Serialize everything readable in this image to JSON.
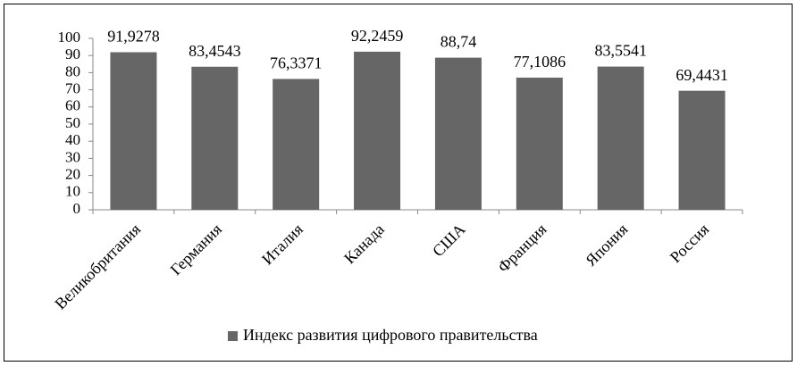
{
  "chart_data": {
    "type": "bar",
    "categories": [
      "Великобритания",
      "Германия",
      "Италия",
      "Канада",
      "США",
      "Франция",
      "Япония",
      "Россия"
    ],
    "series": [
      {
        "name": "Индекс развития цифрового правительства",
        "color": "#666666",
        "values": [
          91.9278,
          83.4543,
          76.3371,
          92.2459,
          88.74,
          77.1086,
          83.5541,
          69.4431
        ],
        "value_labels": [
          "91,9278",
          "83,4543",
          "76,3371",
          "92,2459",
          "88,74",
          "77,1086",
          "83,5541",
          "69,4431"
        ]
      }
    ],
    "ylim": [
      0,
      100
    ],
    "yticks": [
      0,
      10,
      20,
      30,
      40,
      50,
      60,
      70,
      80,
      90,
      100
    ],
    "grid": false,
    "legend": "bottom"
  }
}
